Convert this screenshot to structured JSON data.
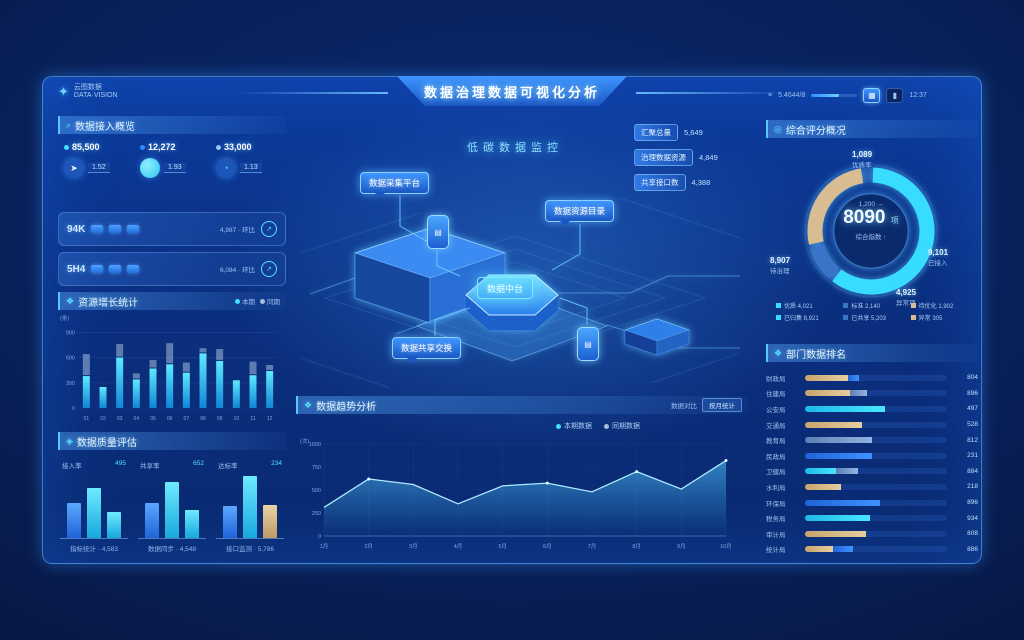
{
  "app": {
    "title": "数据治理数据可视化分析",
    "subtitle": "低碳数据监控",
    "logo": "云图数据",
    "logo_sub": "DATA·VISION"
  },
  "topbar": {
    "menu_icon": "≡",
    "code": "5.4644/8",
    "time": "12:37"
  },
  "left": {
    "overview": {
      "title": "数据接入概览",
      "stats": [
        {
          "dot": "#3fe0ff",
          "value": "85,500",
          "sub": "1.52",
          "icon": "trend-icon",
          "glyph": "➤"
        },
        {
          "dot": "#2e8cff",
          "value": "12,272",
          "sub": "1.93",
          "icon": "sphere-icon",
          "glyph": ""
        },
        {
          "dot": "#9cc3ef",
          "value": "33,000",
          "sub": "1.13",
          "icon": "gauge-icon",
          "glyph": "◔"
        }
      ]
    },
    "rows": [
      {
        "name": "94K",
        "chips": 3,
        "info": "4,987 · 环比",
        "icon": "arrow-up-icon",
        "glyph": "↗"
      },
      {
        "name": "5H4",
        "chips": 3,
        "info": "6,084 · 环比",
        "icon": "arrow-up-icon",
        "glyph": "↗"
      }
    ],
    "bar_panel": {
      "title": "资源增长统计",
      "unit": "(条)",
      "legend": [
        {
          "label": "本期",
          "color": "#3fe0ff"
        },
        {
          "label": "同期",
          "color": "#a9bed9"
        }
      ]
    },
    "quality": {
      "title": "数据质量评估"
    }
  },
  "center": {
    "tags": [
      "数据采集平台",
      "数据资源目录",
      "数据共享交换"
    ],
    "hex_label": "数据中台",
    "stats": [
      {
        "label": "汇聚总量",
        "value": "5,649"
      },
      {
        "label": "治理数据资源",
        "value": "4,849"
      },
      {
        "label": "共享接口数",
        "value": "4,388"
      }
    ],
    "trend": {
      "title": "数据趋势分析",
      "aside": "数据对比",
      "button": "按月统计",
      "unit": "(次)",
      "legend": [
        {
          "label": "本期数据",
          "color": "#3fe0ff"
        },
        {
          "label": "同期数据",
          "color": "#a9bed9"
        }
      ]
    }
  },
  "right": {
    "score": {
      "title": "综合评分概况"
    },
    "rank": {
      "title": "部门数据排名"
    }
  },
  "chart_data": [
    {
      "id": "resource-bars",
      "type": "bar",
      "title": "资源增长统计",
      "categories": [
        "01",
        "02",
        "03",
        "04",
        "05",
        "06",
        "07",
        "08",
        "09",
        "10",
        "11",
        "12"
      ],
      "series": [
        {
          "name": "本期",
          "values": [
            380,
            250,
            600,
            340,
            470,
            520,
            420,
            650,
            560,
            330,
            390,
            440
          ]
        },
        {
          "name": "同期",
          "values": [
            250,
            0,
            150,
            60,
            90,
            240,
            110,
            50,
            130,
            0,
            150,
            60
          ]
        }
      ],
      "ylim": [
        0,
        1000
      ],
      "yticks": [
        900,
        600,
        300,
        0
      ]
    },
    {
      "id": "trend-area",
      "type": "area",
      "title": "数据趋势分析",
      "x": [
        "1月",
        "2月",
        "3月",
        "4月",
        "5月",
        "6月",
        "7月",
        "8月",
        "9月",
        "10月"
      ],
      "values": [
        310,
        620,
        560,
        350,
        545,
        575,
        480,
        700,
        510,
        820
      ],
      "ylim": [
        0,
        1000
      ],
      "yticks": [
        1000,
        750,
        500,
        250,
        0
      ]
    },
    {
      "id": "score-donut",
      "type": "donut",
      "center": {
        "value": "8090",
        "unit": "项",
        "top": "1,200",
        "bottom": "综合指数 ↑"
      },
      "segments": [
        {
          "name": "优质数据",
          "value": 61,
          "color": "#38dcff"
        },
        {
          "name": "标准数据",
          "value": 10,
          "color": "#3a74c9"
        },
        {
          "name": "待治理",
          "value": 27,
          "color": "#d8bd93"
        }
      ],
      "callouts": [
        {
          "value": "1,089",
          "label": "优质率",
          "pos": "top"
        },
        {
          "value": "9,101",
          "label": "已接入",
          "pos": "right"
        },
        {
          "value": "8,907",
          "label": "待治理",
          "pos": "left"
        },
        {
          "value": "4,925",
          "label": "异常项",
          "pos": "bottom"
        }
      ],
      "legend": [
        {
          "label": "优质 4,021",
          "color": "#38dcff"
        },
        {
          "label": "标准 2,140",
          "color": "#3a74c9"
        },
        {
          "label": "待优化 1,902",
          "color": "#d8bd93"
        },
        {
          "label": "已归集 8,921",
          "color": "#38dcff"
        },
        {
          "label": "已共享 5,203",
          "color": "#3a74c9"
        },
        {
          "label": "异常 305",
          "color": "#d8bd93"
        }
      ]
    },
    {
      "id": "dept-rank",
      "type": "hbar",
      "rows": [
        {
          "label": "财政局",
          "value": "804",
          "segs": [
            {
              "pct": 30,
              "color": "tan"
            },
            {
              "pct": 8,
              "color": "blue"
            }
          ]
        },
        {
          "label": "住建局",
          "value": "896",
          "segs": [
            {
              "pct": 32,
              "color": "tan"
            },
            {
              "pct": 12,
              "color": "steel"
            }
          ]
        },
        {
          "label": "公安局",
          "value": "497",
          "segs": [
            {
              "pct": 56,
              "color": "cyan"
            }
          ]
        },
        {
          "label": "交通局",
          "value": "528",
          "segs": [
            {
              "pct": 40,
              "color": "tan"
            }
          ]
        },
        {
          "label": "教育局",
          "value": "812",
          "segs": [
            {
              "pct": 47,
              "color": "steel"
            }
          ]
        },
        {
          "label": "民政局",
          "value": "231",
          "segs": [
            {
              "pct": 47,
              "color": "blue"
            }
          ]
        },
        {
          "label": "卫健局",
          "value": "884",
          "segs": [
            {
              "pct": 22,
              "color": "cyan"
            },
            {
              "pct": 15,
              "color": "steel"
            }
          ]
        },
        {
          "label": "水利局",
          "value": "218",
          "segs": [
            {
              "pct": 25,
              "color": "tan"
            }
          ]
        },
        {
          "label": "环保局",
          "value": "896",
          "segs": [
            {
              "pct": 53,
              "color": "blue"
            }
          ]
        },
        {
          "label": "税务局",
          "value": "934",
          "segs": [
            {
              "pct": 46,
              "color": "cyan"
            }
          ]
        },
        {
          "label": "审计局",
          "value": "808",
          "segs": [
            {
              "pct": 43,
              "color": "tan"
            }
          ]
        },
        {
          "label": "统计局",
          "value": "886",
          "segs": [
            {
              "pct": 20,
              "color": "tan"
            },
            {
              "pct": 14,
              "color": "blue"
            }
          ]
        }
      ]
    },
    {
      "id": "quality-mini",
      "type": "bar-groups",
      "groups": [
        {
          "name": "接入率",
          "value": "495",
          "caption": "指标统计 · 4,583",
          "bars": [
            {
              "pct": 55,
              "color": "blue"
            },
            {
              "pct": 78,
              "color": "cyan"
            },
            {
              "pct": 40,
              "color": "cyan"
            }
          ]
        },
        {
          "name": "共享率",
          "value": "652",
          "caption": "数据同步 · 4,548",
          "bars": [
            {
              "pct": 55,
              "color": "blue"
            },
            {
              "pct": 88,
              "color": "cyan"
            },
            {
              "pct": 44,
              "color": "cyan"
            }
          ]
        },
        {
          "name": "达标率",
          "value": "234",
          "caption": "接口监测 · 5,786",
          "bars": [
            {
              "pct": 50,
              "color": "blue"
            },
            {
              "pct": 97,
              "color": "cyan"
            },
            {
              "pct": 52,
              "color": "tan"
            }
          ]
        }
      ]
    }
  ]
}
